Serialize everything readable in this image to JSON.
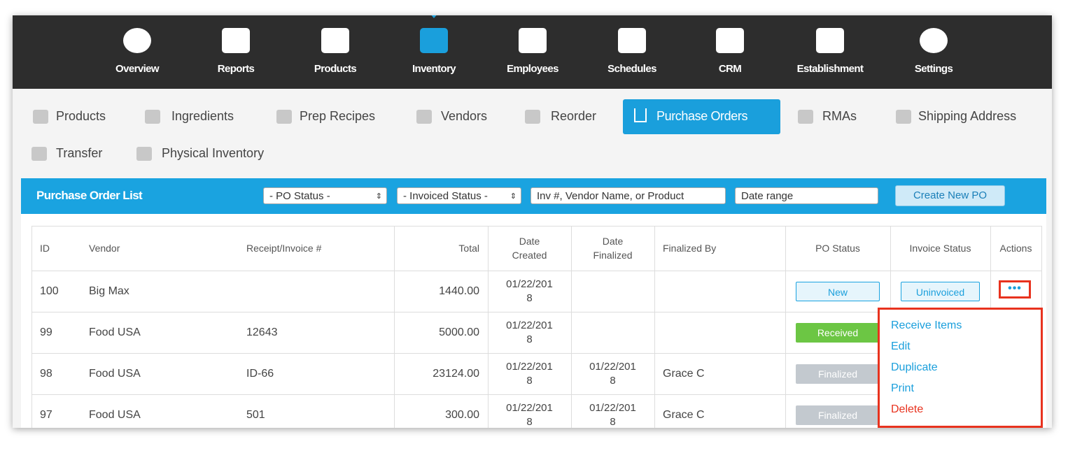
{
  "nav": [
    "Overview",
    "Reports",
    "Products",
    "Inventory",
    "Employees",
    "Schedules",
    "CRM",
    "Establishment",
    "Settings"
  ],
  "subnav": [
    "Products",
    "Ingredients",
    "Prep Recipes",
    "Vendors",
    "Reorder",
    "Purchase Orders",
    "RMAs",
    "Shipping Address",
    "Transfer",
    "Physical Inventory"
  ],
  "toolbar": {
    "title": "Purchase Order List",
    "po_status": "- PO Status -",
    "invoiced_status": "- Invoiced Status -",
    "search_placeholder": "Inv #, Vendor Name, or Product",
    "date_placeholder": "Date range",
    "button": "Create New PO"
  },
  "table": {
    "headers": [
      "ID",
      "Vendor",
      "Receipt/Invoice #",
      "Total",
      "Date Created",
      "Date Finalized",
      "Finalized By",
      "PO Status",
      "Invoice Status",
      "Actions"
    ],
    "rows": [
      [
        "100",
        "Big Max",
        null,
        "1440.00",
        "01/22/2018",
        null,
        null,
        "New",
        "Uninvoiced"
      ],
      [
        "99",
        "Food USA",
        "12643",
        "5000.00",
        "01/22/2018",
        null,
        null,
        "Received",
        null
      ],
      [
        "98",
        "Food USA",
        "ID-66",
        "23124.00",
        "01/22/2018",
        "01/22/2018",
        "Grace C",
        "Finalized",
        null
      ],
      [
        "97",
        "Food USA",
        "501",
        "300.00",
        "01/22/2018",
        "01/22/2018",
        "Grace C",
        "Finalized",
        null
      ]
    ]
  },
  "actions_menu": [
    "Receive Items",
    "Edit",
    "Duplicate",
    "Print",
    "Delete"
  ]
}
